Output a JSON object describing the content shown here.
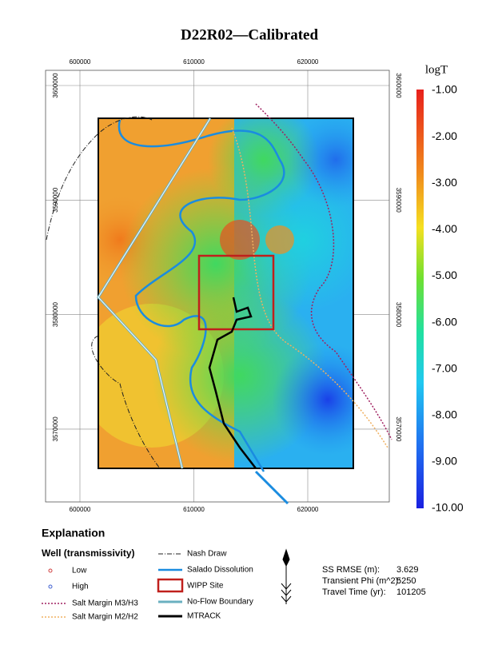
{
  "title": "D22R02—Calibrated",
  "map": {
    "xticks": [
      600000,
      610000,
      620000
    ],
    "yticks": [
      3600000,
      3590000,
      3580000,
      3570000
    ]
  },
  "colorbar": {
    "title": "logT",
    "labels": [
      "-1.00",
      "-2.00",
      "-3.00",
      "-4.00",
      "-5.00",
      "-6.00",
      "-7.00",
      "-8.00",
      "-9.00",
      "-10.00"
    ]
  },
  "explanation": {
    "title": "Explanation",
    "wells": {
      "title": "Well (transmissivity)",
      "items": [
        "Low",
        "High"
      ]
    },
    "lines": [
      "Salt Margin M3/H3",
      "Salt Margin M2/H2",
      "Nash Draw",
      "Salado Dissolution",
      "WIPP Site",
      "No-Flow Boundary",
      "MTRACK"
    ]
  },
  "stats": [
    {
      "label": "SS RMSE (m):",
      "value": 3.629
    },
    {
      "label": "Transient Phi (m^2):",
      "value": 5250
    },
    {
      "label": "Travel Time (yr):",
      "value": 101205
    }
  ]
}
